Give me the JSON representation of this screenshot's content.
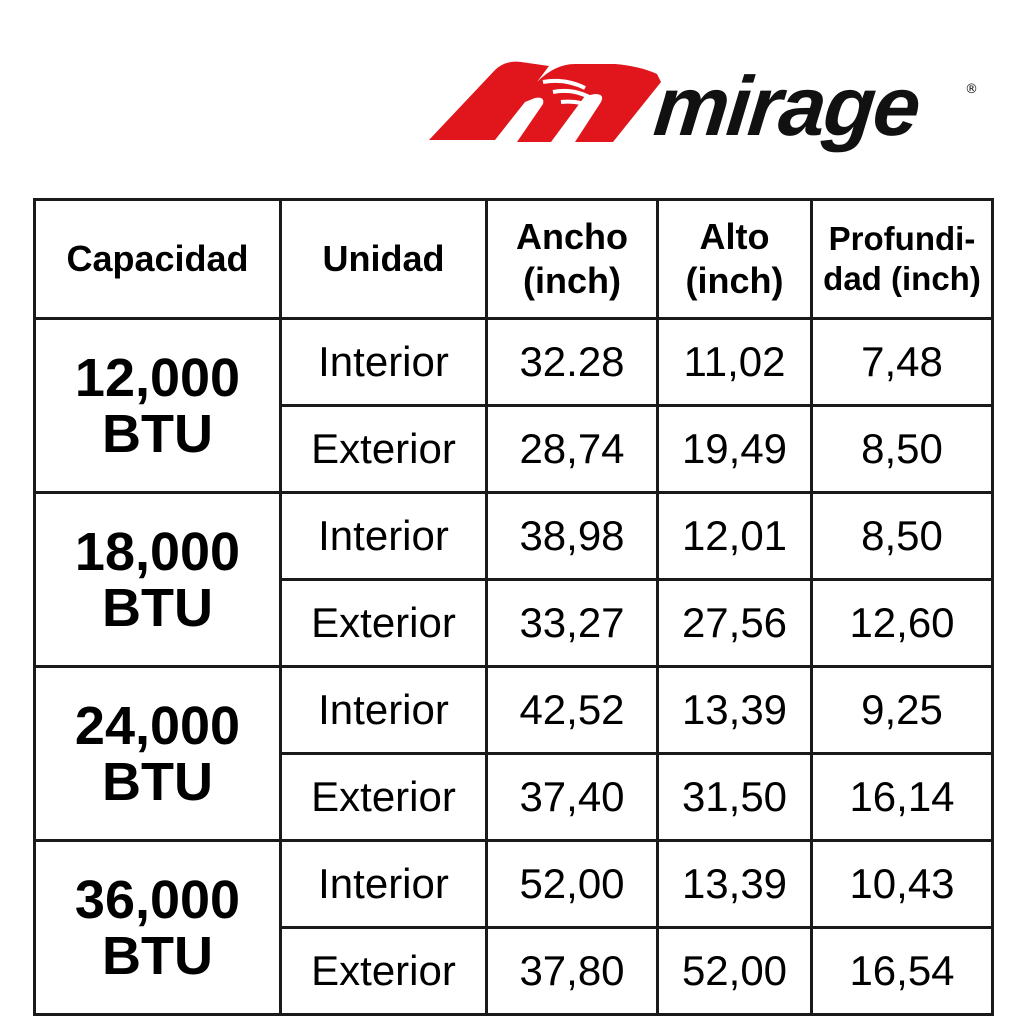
{
  "brand": {
    "name": "mirage",
    "registered_mark": "®",
    "logo_color": "#e0161c"
  },
  "table": {
    "headers": {
      "capacidad": "Capacidad",
      "unidad": "Unidad",
      "ancho": [
        "Ancho",
        "(inch)"
      ],
      "alto": [
        "Alto",
        "(inch)"
      ],
      "profundidad": [
        "Profundi-",
        "dad (inch)"
      ]
    },
    "groups": [
      {
        "capacity": [
          "12,000",
          "BTU"
        ],
        "rows": [
          {
            "unit": "Interior",
            "ancho": "32.28",
            "alto": "11,02",
            "prof": "7,48"
          },
          {
            "unit": "Exterior",
            "ancho": "28,74",
            "alto": "19,49",
            "prof": "8,50"
          }
        ]
      },
      {
        "capacity": [
          "18,000",
          "BTU"
        ],
        "rows": [
          {
            "unit": "Interior",
            "ancho": "38,98",
            "alto": "12,01",
            "prof": "8,50"
          },
          {
            "unit": "Exterior",
            "ancho": "33,27",
            "alto": "27,56",
            "prof": "12,60"
          }
        ]
      },
      {
        "capacity": [
          "24,000",
          "BTU"
        ],
        "rows": [
          {
            "unit": "Interior",
            "ancho": "42,52",
            "alto": "13,39",
            "prof": "9,25"
          },
          {
            "unit": "Exterior",
            "ancho": "37,40",
            "alto": "31,50",
            "prof": "16,14"
          }
        ]
      },
      {
        "capacity": [
          "36,000",
          "BTU"
        ],
        "rows": [
          {
            "unit": "Interior",
            "ancho": "52,00",
            "alto": "13,39",
            "prof": "10,43"
          },
          {
            "unit": "Exterior",
            "ancho": "37,80",
            "alto": "52,00",
            "prof": "16,54"
          }
        ]
      }
    ]
  }
}
